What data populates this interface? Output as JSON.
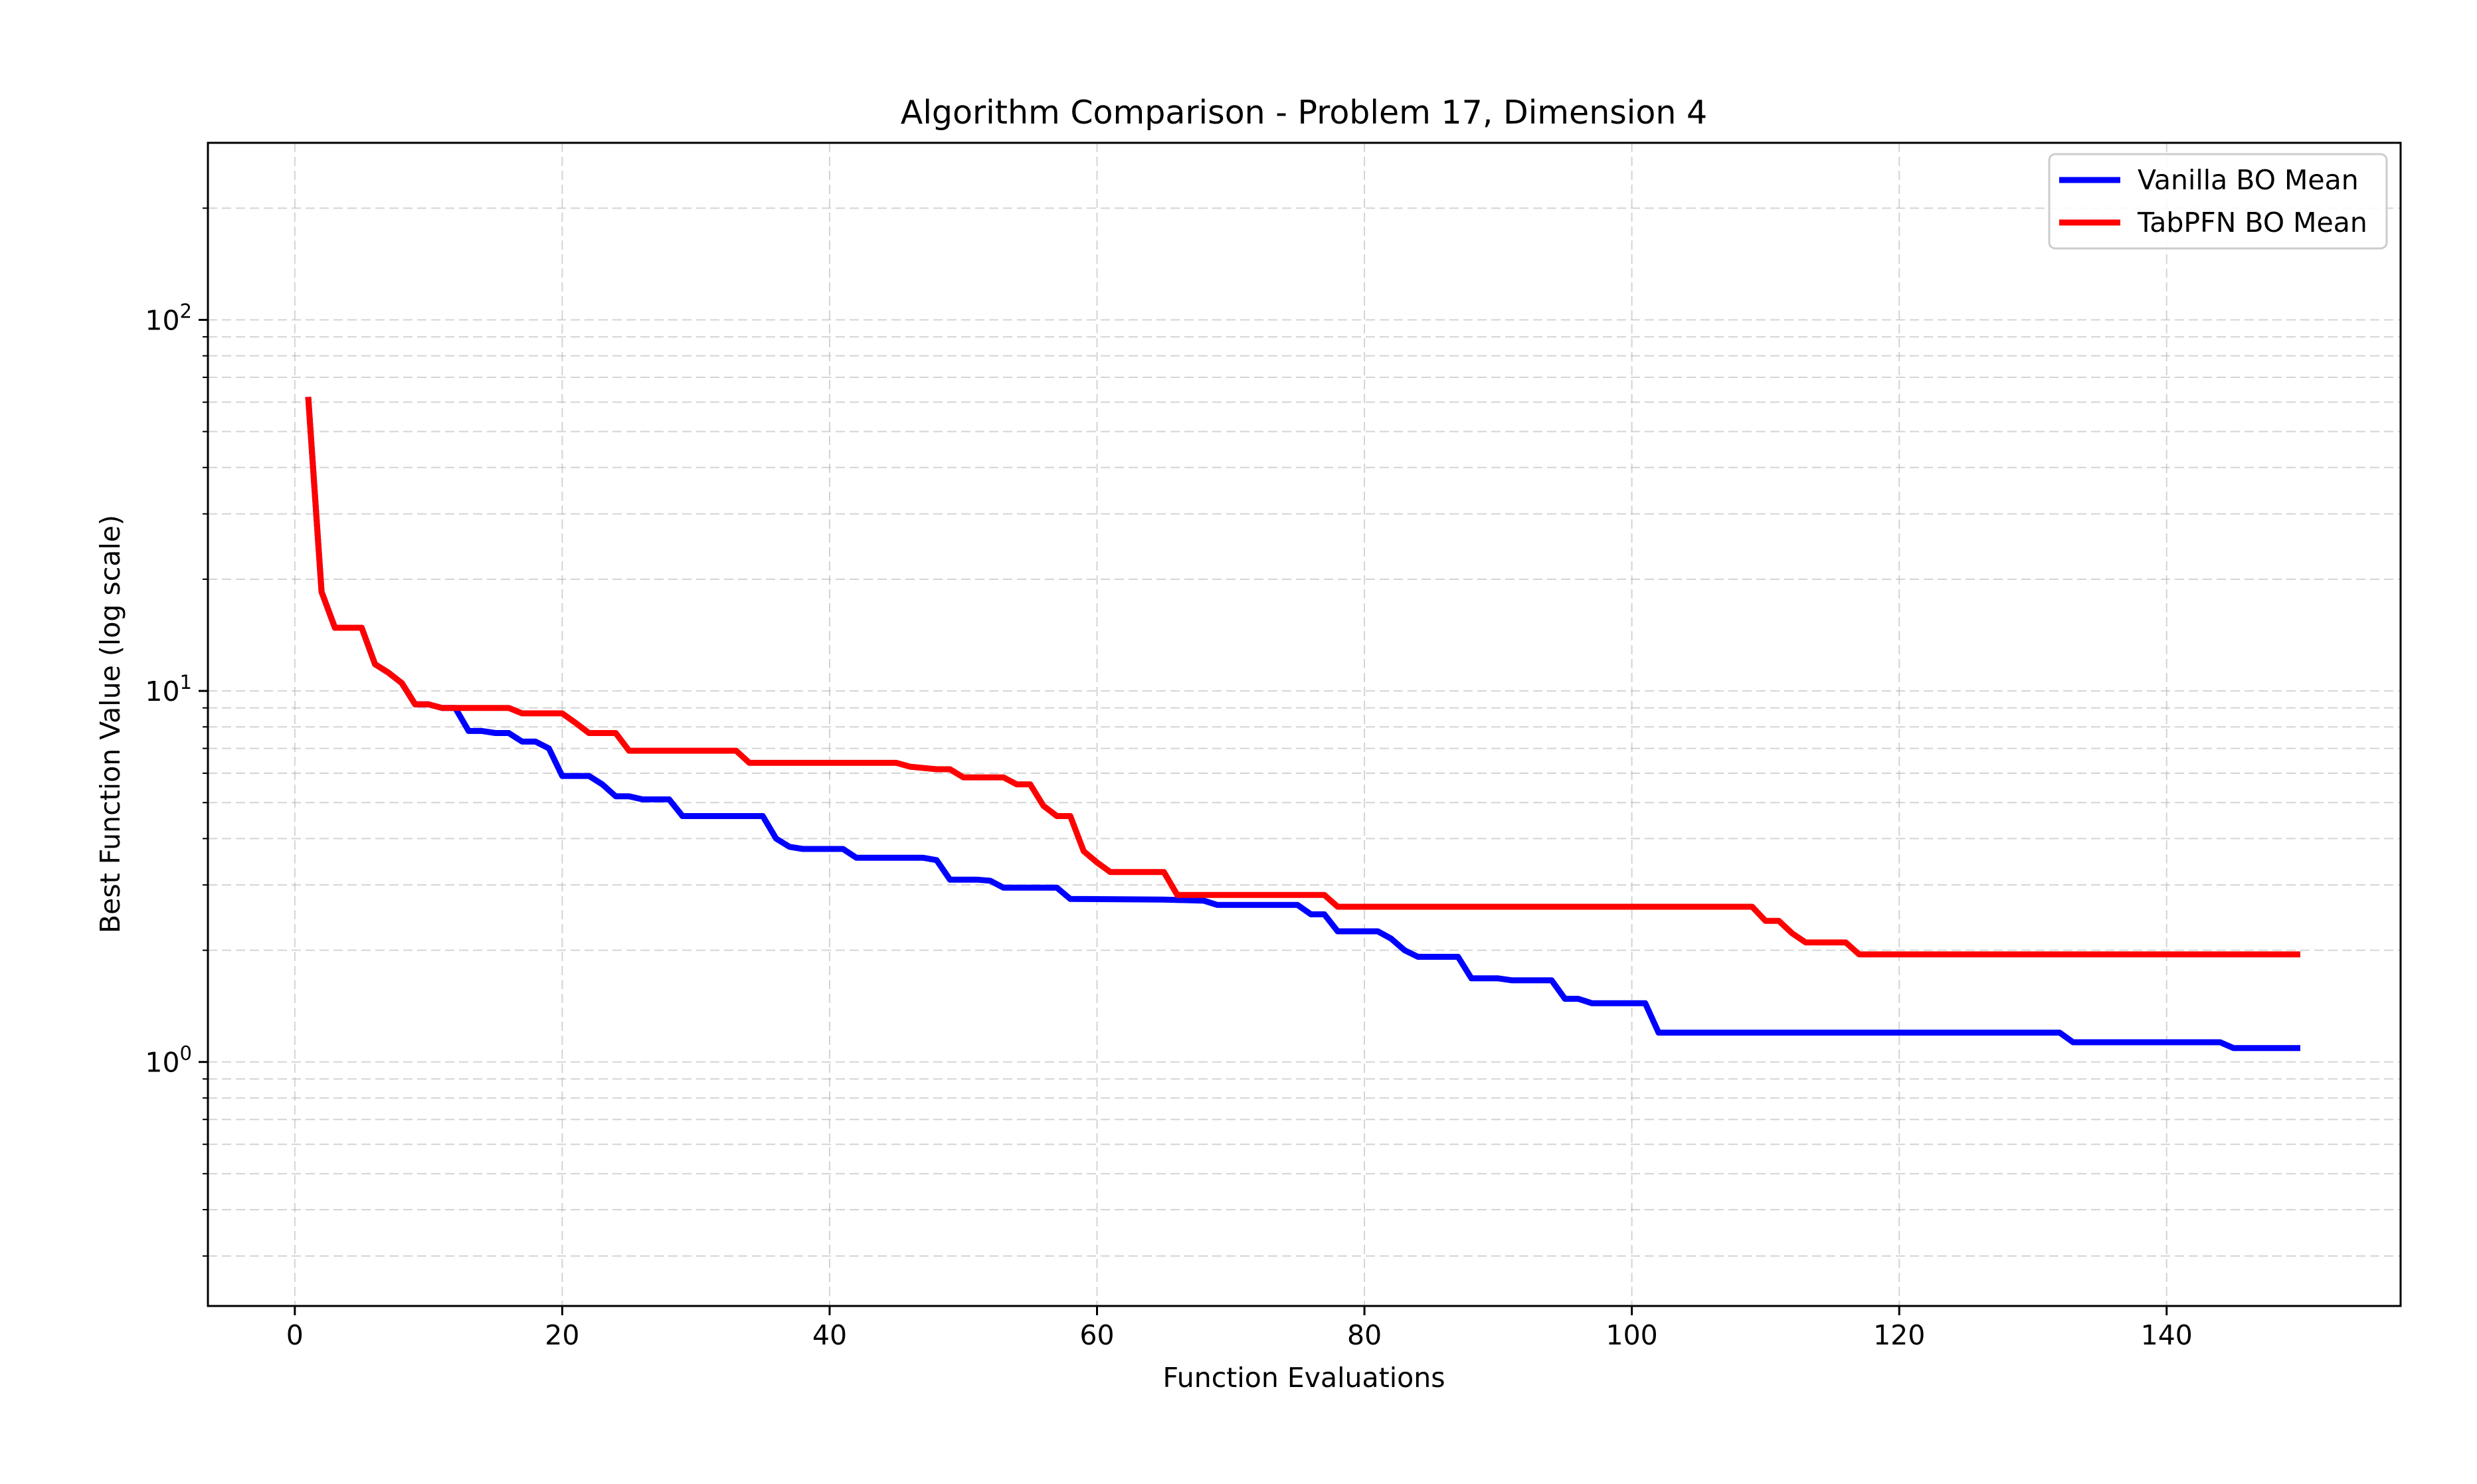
{
  "chart_data": {
    "type": "line",
    "title": "Algorithm Comparison - Problem 17, Dimension 4",
    "xlabel": "Function Evaluations",
    "ylabel": "Best Function Value (log scale)",
    "xlim": [
      -6.5,
      157.5
    ],
    "ylim": [
      0.22,
      300
    ],
    "yscale": "log",
    "grid": true,
    "legend_position": "top-right",
    "x_ticks": [
      0,
      20,
      40,
      60,
      80,
      100,
      120,
      140
    ],
    "x_tick_labels": [
      "0",
      "20",
      "40",
      "60",
      "80",
      "100",
      "120",
      "140"
    ],
    "y_ticks": [
      {
        "value": 1,
        "base": "10",
        "exponent": "0"
      },
      {
        "value": 10,
        "base": "10",
        "exponent": "1"
      },
      {
        "value": 100,
        "base": "10",
        "exponent": "2"
      }
    ],
    "y_minor_ticks": [
      0.3,
      0.4,
      0.5,
      0.6,
      0.7,
      0.8,
      0.9,
      2,
      3,
      4,
      5,
      6,
      7,
      8,
      9,
      20,
      30,
      40,
      50,
      60,
      70,
      80,
      90,
      200
    ],
    "series": [
      {
        "name": "Vanilla BO Mean",
        "color": "#0000ff",
        "points": [
          [
            1,
            62
          ],
          [
            2,
            18.5
          ],
          [
            3,
            14.8
          ],
          [
            5,
            14.8
          ],
          [
            6,
            11.8
          ],
          [
            7,
            11.2
          ],
          [
            8,
            10.5
          ],
          [
            9,
            9.2
          ],
          [
            10,
            9.2
          ],
          [
            11,
            9.0
          ],
          [
            12,
            9.0
          ],
          [
            13,
            7.8
          ],
          [
            14,
            7.8
          ],
          [
            15,
            7.7
          ],
          [
            16,
            7.7
          ],
          [
            17,
            7.3
          ],
          [
            18,
            7.3
          ],
          [
            19,
            7.0
          ],
          [
            20,
            5.9
          ],
          [
            22,
            5.9
          ],
          [
            23,
            5.6
          ],
          [
            24,
            5.2
          ],
          [
            25,
            5.2
          ],
          [
            26,
            5.1
          ],
          [
            28,
            5.1
          ],
          [
            29,
            4.6
          ],
          [
            35,
            4.6
          ],
          [
            36,
            4.0
          ],
          [
            37,
            3.8
          ],
          [
            38,
            3.75
          ],
          [
            41,
            3.75
          ],
          [
            42,
            3.55
          ],
          [
            47,
            3.55
          ],
          [
            48,
            3.5
          ],
          [
            49,
            3.1
          ],
          [
            51,
            3.1
          ],
          [
            52,
            3.08
          ],
          [
            53,
            2.95
          ],
          [
            57,
            2.95
          ],
          [
            58,
            2.75
          ],
          [
            65,
            2.74
          ],
          [
            68,
            2.72
          ],
          [
            69,
            2.65
          ],
          [
            75,
            2.65
          ],
          [
            76,
            2.5
          ],
          [
            77,
            2.5
          ],
          [
            78,
            2.25
          ],
          [
            81,
            2.25
          ],
          [
            82,
            2.15
          ],
          [
            83,
            2.0
          ],
          [
            84,
            1.92
          ],
          [
            87,
            1.92
          ],
          [
            88,
            1.68
          ],
          [
            90,
            1.68
          ],
          [
            91,
            1.66
          ],
          [
            94,
            1.66
          ],
          [
            95,
            1.48
          ],
          [
            96,
            1.48
          ],
          [
            97,
            1.44
          ],
          [
            101,
            1.44
          ],
          [
            102,
            1.2
          ],
          [
            132,
            1.2
          ],
          [
            133,
            1.13
          ],
          [
            144,
            1.13
          ],
          [
            145,
            1.09
          ],
          [
            150,
            1.09
          ]
        ]
      },
      {
        "name": "TabPFN BO Mean",
        "color": "#ff0000",
        "points": [
          [
            1,
            62
          ],
          [
            2,
            18.5
          ],
          [
            3,
            14.8
          ],
          [
            5,
            14.8
          ],
          [
            6,
            11.8
          ],
          [
            7,
            11.2
          ],
          [
            8,
            10.5
          ],
          [
            9,
            9.2
          ],
          [
            10,
            9.2
          ],
          [
            11,
            9.0
          ],
          [
            16,
            9.0
          ],
          [
            17,
            8.7
          ],
          [
            20,
            8.7
          ],
          [
            21,
            8.2
          ],
          [
            22,
            7.7
          ],
          [
            24,
            7.7
          ],
          [
            25,
            6.9
          ],
          [
            33,
            6.9
          ],
          [
            34,
            6.4
          ],
          [
            45,
            6.4
          ],
          [
            46,
            6.25
          ],
          [
            48,
            6.15
          ],
          [
            49,
            6.15
          ],
          [
            50,
            5.85
          ],
          [
            53,
            5.85
          ],
          [
            54,
            5.6
          ],
          [
            55,
            5.6
          ],
          [
            56,
            4.9
          ],
          [
            57,
            4.6
          ],
          [
            58,
            4.6
          ],
          [
            59,
            3.7
          ],
          [
            60,
            3.45
          ],
          [
            61,
            3.25
          ],
          [
            65,
            3.25
          ],
          [
            66,
            2.82
          ],
          [
            77,
            2.82
          ],
          [
            78,
            2.62
          ],
          [
            109,
            2.62
          ],
          [
            110,
            2.4
          ],
          [
            111,
            2.4
          ],
          [
            112,
            2.22
          ],
          [
            113,
            2.1
          ],
          [
            116,
            2.1
          ],
          [
            117,
            1.95
          ],
          [
            150,
            1.95
          ]
        ]
      }
    ]
  }
}
